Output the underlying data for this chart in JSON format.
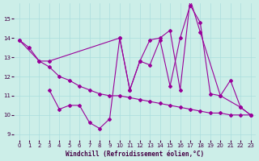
{
  "xlabel": "Windchill (Refroidissement éolien,°C)",
  "background_color": "#cceee8",
  "line_color": "#990099",
  "grid_color": "#aadddd",
  "xlim": [
    -0.5,
    23.5
  ],
  "ylim": [
    8.7,
    15.8
  ],
  "yticks": [
    9,
    10,
    11,
    12,
    13,
    14,
    15
  ],
  "xticks": [
    0,
    1,
    2,
    3,
    4,
    5,
    6,
    7,
    8,
    9,
    10,
    11,
    12,
    13,
    14,
    15,
    16,
    17,
    18,
    19,
    20,
    21,
    22,
    23
  ],
  "series1": {
    "x": [
      0,
      2,
      3,
      10,
      11,
      12,
      13,
      14,
      15,
      16,
      17,
      18,
      20,
      22,
      23
    ],
    "y": [
      13.9,
      12.8,
      12.8,
      14.0,
      11.3,
      12.8,
      13.9,
      14.0,
      14.4,
      11.3,
      16.0,
      14.3,
      11.0,
      10.4,
      10.0
    ]
  },
  "series2": {
    "x": [
      0,
      1,
      2,
      3,
      4,
      5,
      6,
      7,
      8,
      9,
      10,
      11,
      12,
      13,
      14,
      15,
      16,
      17,
      18,
      19,
      20,
      21,
      22,
      23
    ],
    "y": [
      13.9,
      13.5,
      12.8,
      12.5,
      12.0,
      11.8,
      11.5,
      11.3,
      11.1,
      11.0,
      11.0,
      10.9,
      10.8,
      10.7,
      10.6,
      10.5,
      10.4,
      10.3,
      10.2,
      10.1,
      10.1,
      10.0,
      10.0,
      10.0
    ]
  },
  "series3": {
    "x": [
      3,
      4,
      5,
      6,
      7,
      8,
      9,
      10,
      11,
      12,
      13,
      14,
      15,
      16,
      17,
      18,
      19,
      20,
      21,
      22,
      23
    ],
    "y": [
      11.3,
      10.3,
      10.5,
      10.5,
      9.6,
      9.3,
      9.8,
      14.0,
      11.3,
      12.8,
      12.6,
      13.9,
      11.5,
      14.0,
      15.7,
      14.8,
      11.1,
      11.0,
      11.8,
      10.4,
      10.0
    ]
  }
}
